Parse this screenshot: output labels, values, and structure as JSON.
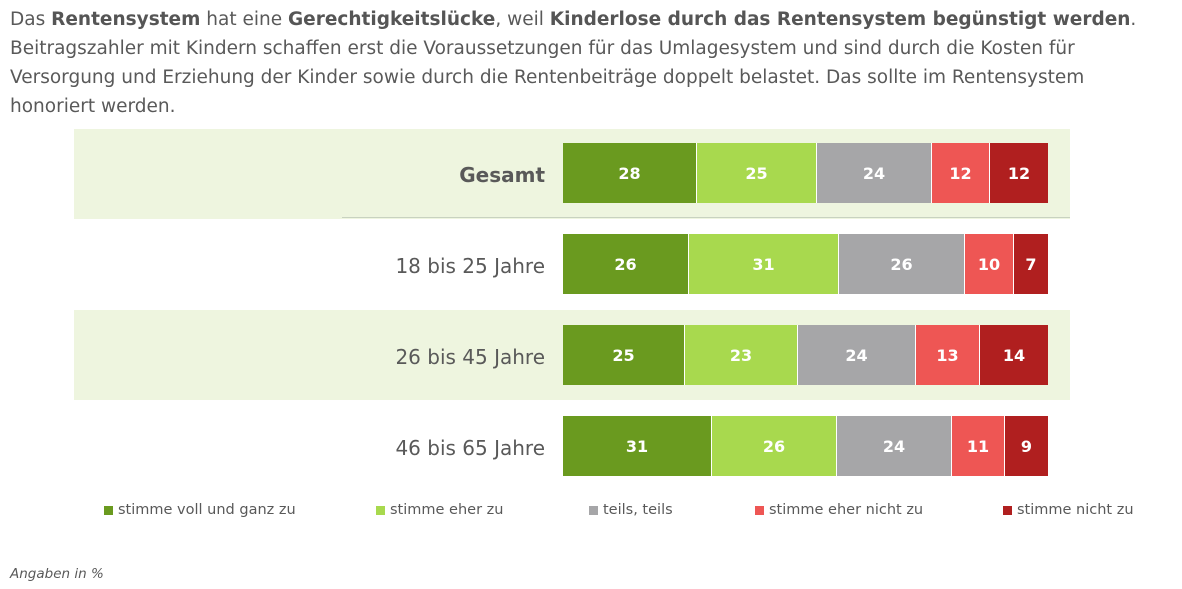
{
  "title_parts": [
    {
      "text": "Das ",
      "bold": false
    },
    {
      "text": "Rentensystem",
      "bold": true
    },
    {
      "text": " hat eine ",
      "bold": false
    },
    {
      "text": "Gerechtigkeitslücke",
      "bold": true
    },
    {
      "text": ", weil ",
      "bold": false
    },
    {
      "text": "Kinderlose durch das Rentensystem begünstigt werden",
      "bold": true
    },
    {
      "text": ". Beitragszahler mit Kindern schaffen erst die Voraussetzungen für das Umlagesystem und sind durch die Kosten für Versorgung und Erziehung der Kinder sowie durch die Rentenbeiträge doppelt belastet. Das sollte im Rentensystem honoriert werden.",
      "bold": false
    }
  ],
  "note": "Angaben in %",
  "chart_data": {
    "type": "bar",
    "stacked": true,
    "orientation": "horizontal",
    "categories": [
      "Gesamt",
      "18 bis 25 Jahre",
      "26 bis 45 Jahre",
      "46 bis 65 Jahre"
    ],
    "series": [
      {
        "name": "stimme voll und ganz zu",
        "color": "#6a9a1f",
        "values": [
          28,
          26,
          25,
          31
        ]
      },
      {
        "name": "stimme eher zu",
        "color": "#a8d94e",
        "values": [
          25,
          31,
          23,
          26
        ]
      },
      {
        "name": "teils, teils",
        "color": "#a6a6a8",
        "values": [
          24,
          26,
          24,
          24
        ]
      },
      {
        "name": "stimme eher nicht zu",
        "color": "#ee5654",
        "values": [
          12,
          10,
          13,
          11
        ]
      },
      {
        "name": "stimme nicht zu",
        "color": "#b01f1f",
        "values": [
          12,
          7,
          14,
          9
        ]
      }
    ],
    "highlighted_rows": [
      0,
      2
    ],
    "bold_rows": [
      0
    ],
    "legend_position": "bottom",
    "grid": false
  }
}
